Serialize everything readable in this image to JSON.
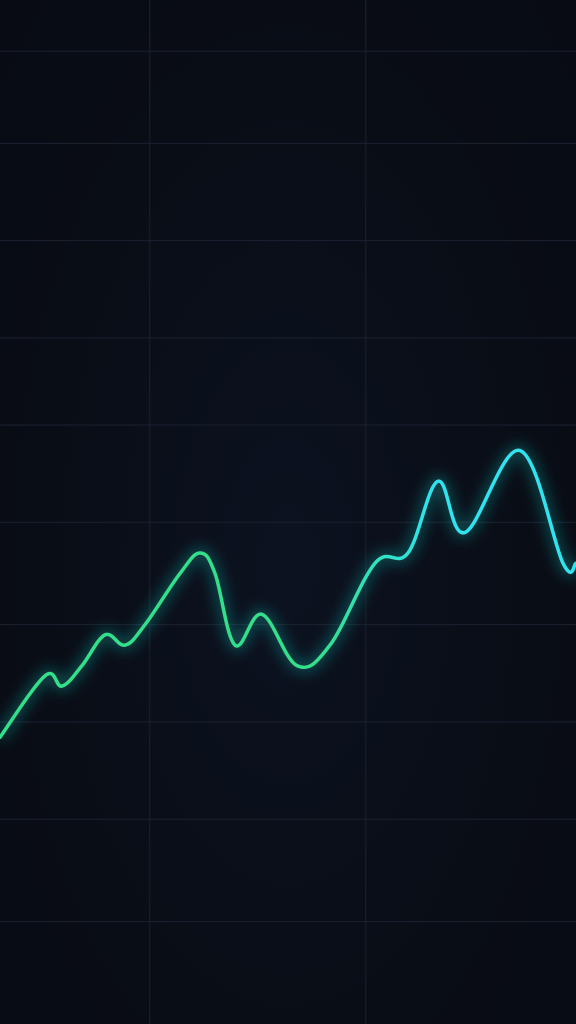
{
  "chart_data": {
    "type": "line",
    "title": "",
    "xlabel": "",
    "ylabel": "",
    "grid": true,
    "legend": "none",
    "x": [
      0,
      45,
      62,
      82,
      105,
      125,
      145,
      180,
      200,
      215,
      235,
      262,
      297,
      330,
      375,
      408,
      438,
      465,
      520,
      563,
      576
    ],
    "series": [
      {
        "values": [
          0.28,
          0.34,
          0.33,
          0.35,
          0.38,
          0.37,
          0.39,
          0.44,
          0.46,
          0.44,
          0.37,
          0.4,
          0.35,
          0.37,
          0.45,
          0.46,
          0.53,
          0.48,
          0.56,
          0.45,
          0.45
        ]
      }
    ],
    "xlim": [
      0,
      576
    ],
    "ylim": [
      0,
      1
    ],
    "grid_x": [
      0.26,
      0.635
    ],
    "grid_y": [
      0.1,
      0.2,
      0.295,
      0.39,
      0.49,
      0.585,
      0.67,
      0.765,
      0.86,
      0.95
    ],
    "colors": {
      "background": "#0a0e17",
      "grid": "#1a2130",
      "line_start": "#33e08a",
      "line_mid": "#2ee0a8",
      "line_end": "#2fe3f0",
      "glow": "#22d3c8"
    }
  }
}
